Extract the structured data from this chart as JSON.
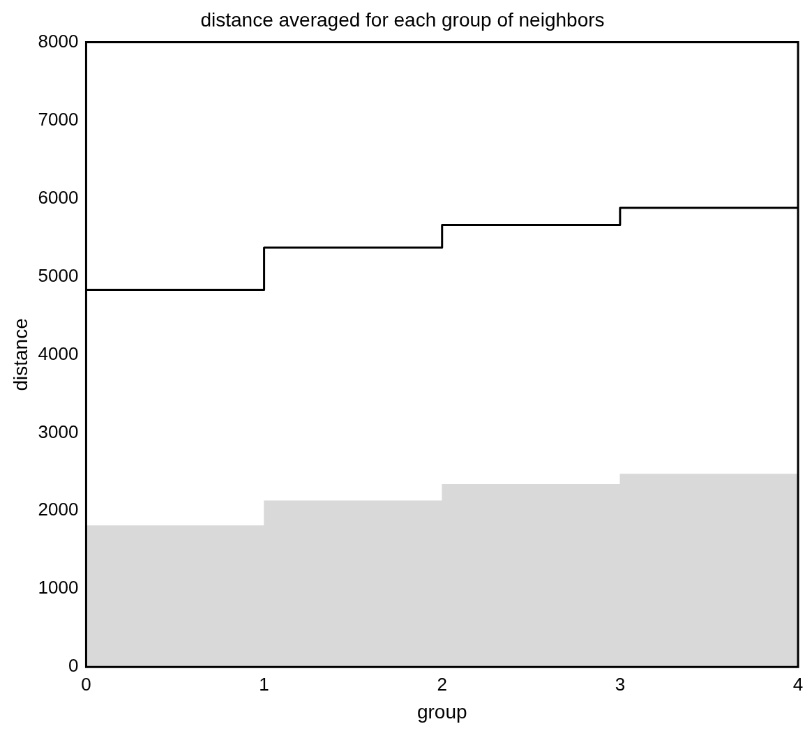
{
  "chart_data": {
    "type": "bar",
    "title": "distance averaged for each group of neighbors",
    "xlabel": "group",
    "ylabel": "distance",
    "x": [
      0.5,
      1.5,
      2.5,
      3.5
    ],
    "xlim": [
      0,
      4
    ],
    "xticks": [
      0,
      1,
      2,
      3,
      4
    ],
    "ylim": [
      0,
      8000
    ],
    "yticks": [
      0,
      1000,
      2000,
      3000,
      4000,
      5000,
      6000,
      7000,
      8000
    ],
    "series": [
      {
        "color": "#d9d9d9",
        "values": [
          1810,
          2130,
          2340,
          2470
        ]
      },
      {
        "type": "step",
        "color": "#000000",
        "x": [
          0,
          1,
          2,
          3,
          4
        ],
        "values": [
          4830,
          5370,
          5660,
          5880,
          5880
        ]
      }
    ]
  }
}
